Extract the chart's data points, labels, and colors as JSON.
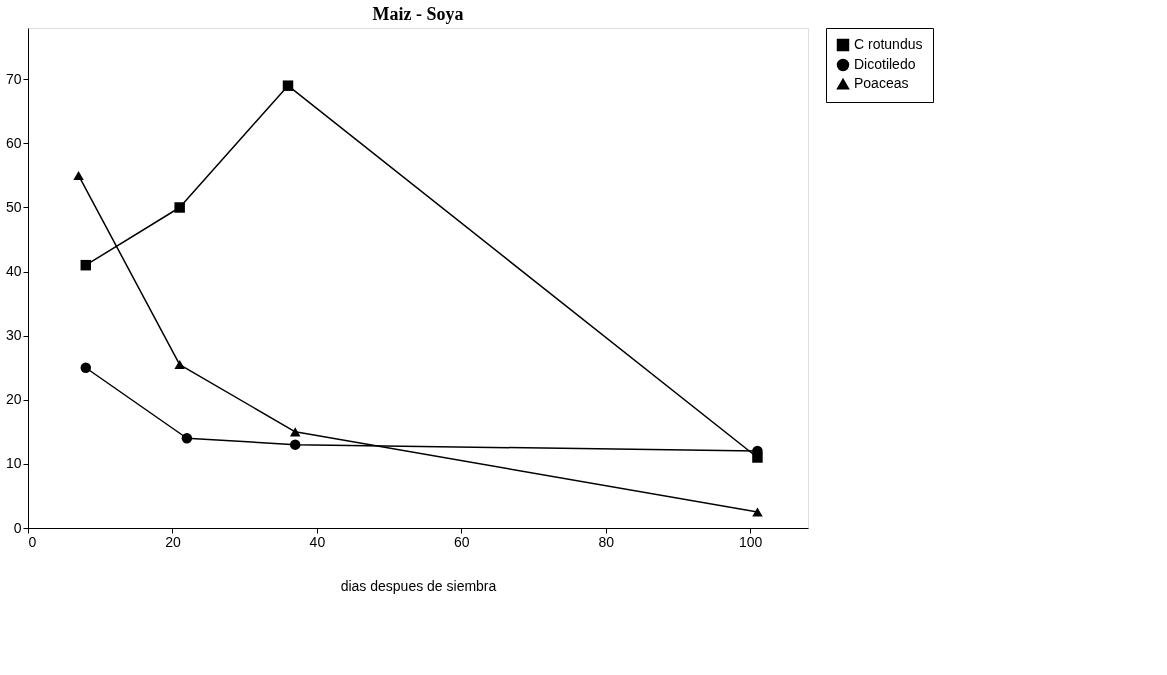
{
  "chart_data": {
    "type": "line",
    "title": "Maiz - Soya",
    "xlabel": "dias despues de siembra",
    "xlim": [
      0,
      108
    ],
    "xticks": [
      0,
      20,
      40,
      60,
      80,
      100
    ],
    "ylim": [
      0,
      78
    ],
    "yticks": [
      0,
      10,
      20,
      30,
      40,
      50,
      60,
      70
    ],
    "grid": false,
    "legend": "right",
    "line_style": "solid",
    "series": [
      {
        "name": "C rotundus",
        "color": "#000000",
        "marker": "square",
        "x": [
          8,
          21,
          36,
          101
        ],
        "values": [
          41,
          50,
          69,
          11
        ]
      },
      {
        "name": "Dicotiledo",
        "color": "#000000",
        "marker": "circle",
        "x": [
          8,
          22,
          37,
          101
        ],
        "values": [
          25,
          14,
          13,
          12
        ]
      },
      {
        "name": "Poaceas",
        "color": "#000000",
        "marker": "triangle",
        "x": [
          7,
          21,
          37,
          101
        ],
        "values": [
          55,
          25.5,
          15,
          2.5
        ]
      }
    ]
  }
}
